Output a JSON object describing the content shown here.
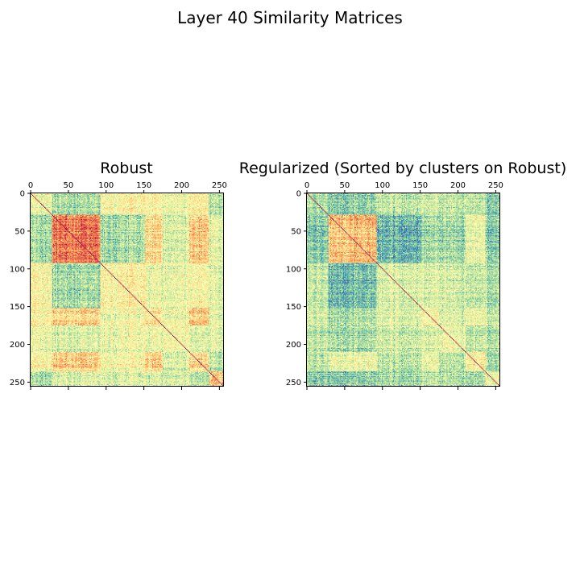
{
  "figure": {
    "title": "Layer 40 Similarity Matrices"
  },
  "chart_data": [
    {
      "type": "heatmap",
      "title": "Robust",
      "size": 256,
      "colormap": "Spectral_r",
      "xlim": [
        0,
        256
      ],
      "ylim": [
        256,
        0
      ],
      "x_ticks": [
        0,
        50,
        100,
        150,
        200,
        250
      ],
      "y_ticks": [
        0,
        50,
        100,
        150,
        200,
        250
      ],
      "x_tick_labels": [
        "0",
        "50",
        "100",
        "150",
        "200",
        "250"
      ],
      "y_tick_labels": [
        "0",
        "50",
        "100",
        "150",
        "200",
        "250"
      ],
      "x_axis_position": "top",
      "diagonal_value": 1.0,
      "cluster_bounds": [
        0,
        28,
        92,
        152,
        175,
        210,
        236,
        256
      ],
      "block_similarity": [
        [
          0.45,
          0.3,
          0.5,
          0.5,
          0.45,
          0.5,
          0.3
        ],
        [
          0.3,
          0.78,
          0.3,
          0.6,
          0.4,
          0.62,
          0.4
        ],
        [
          0.5,
          0.3,
          0.52,
          0.45,
          0.45,
          0.48,
          0.4
        ],
        [
          0.5,
          0.6,
          0.45,
          0.55,
          0.45,
          0.62,
          0.4
        ],
        [
          0.45,
          0.4,
          0.45,
          0.45,
          0.48,
          0.4,
          0.4
        ],
        [
          0.5,
          0.62,
          0.48,
          0.62,
          0.4,
          0.58,
          0.32
        ],
        [
          0.3,
          0.4,
          0.4,
          0.4,
          0.4,
          0.32,
          0.62
        ]
      ]
    },
    {
      "type": "heatmap",
      "title": "Regularized (Sorted by clusters on Robust)",
      "size": 256,
      "colormap": "Spectral_r",
      "xlim": [
        0,
        256
      ],
      "ylim": [
        256,
        0
      ],
      "x_ticks": [
        0,
        50,
        100,
        150,
        200,
        250
      ],
      "y_ticks": [
        0,
        50,
        100,
        150,
        200,
        250
      ],
      "x_tick_labels": [
        "0",
        "50",
        "100",
        "150",
        "200",
        "250"
      ],
      "y_tick_labels": [
        "0",
        "50",
        "100",
        "150",
        "200",
        "250"
      ],
      "x_axis_position": "top",
      "diagonal_value": 1.0,
      "cluster_bounds": [
        0,
        28,
        92,
        152,
        175,
        210,
        236,
        256
      ],
      "block_similarity": [
        [
          0.32,
          0.25,
          0.35,
          0.38,
          0.35,
          0.35,
          0.25
        ],
        [
          0.25,
          0.65,
          0.2,
          0.3,
          0.3,
          0.45,
          0.25
        ],
        [
          0.35,
          0.2,
          0.4,
          0.4,
          0.38,
          0.35,
          0.3
        ],
        [
          0.38,
          0.3,
          0.4,
          0.48,
          0.4,
          0.45,
          0.35
        ],
        [
          0.35,
          0.3,
          0.38,
          0.4,
          0.45,
          0.35,
          0.32
        ],
        [
          0.35,
          0.45,
          0.35,
          0.45,
          0.35,
          0.52,
          0.3
        ],
        [
          0.25,
          0.25,
          0.3,
          0.35,
          0.32,
          0.3,
          0.45
        ]
      ]
    }
  ]
}
